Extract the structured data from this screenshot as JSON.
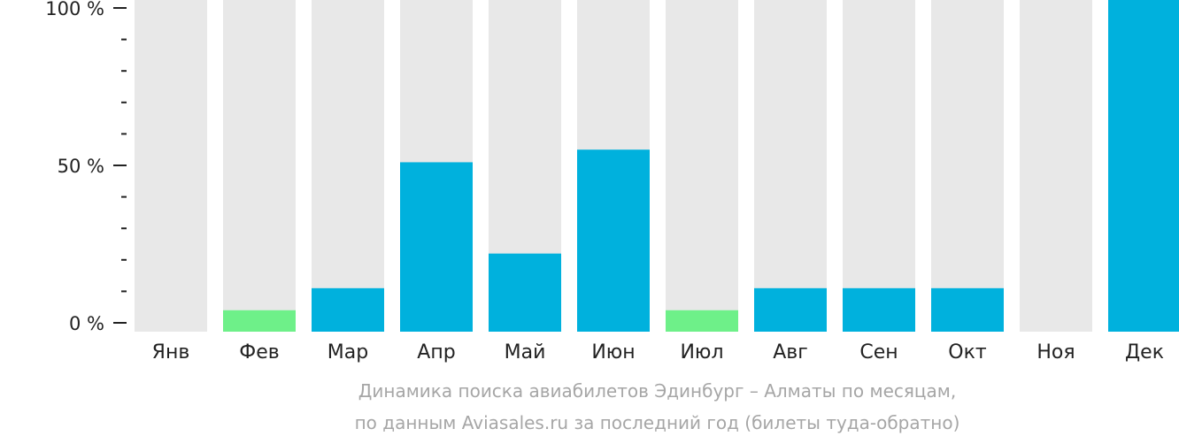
{
  "chart_data": {
    "type": "bar",
    "title_lines": [
      "Динамика поиска авиабилетов Эдинбург – Алматы по месяцам,",
      "по данным Aviasales.ru за последний год (билеты туда-обратно)"
    ],
    "categories": [
      "Янв",
      "Фев",
      "Мар",
      "Апр",
      "Май",
      "Июн",
      "Июл",
      "Авг",
      "Сен",
      "Окт",
      "Ноя",
      "Дек"
    ],
    "values": [
      0,
      4,
      11,
      51,
      22,
      55,
      4,
      11,
      11,
      11,
      0,
      100
    ],
    "value_colors": [
      "#00b1dd",
      "#6ef089",
      "#00b1dd",
      "#00b1dd",
      "#00b1dd",
      "#00b1dd",
      "#6ef089",
      "#00b1dd",
      "#00b1dd",
      "#00b1dd",
      "#00b1dd",
      "#00b1dd"
    ],
    "y_ticks": [
      {
        "value": 0,
        "label": "0 %"
      },
      {
        "value": 50,
        "label": "50 %"
      },
      {
        "value": 100,
        "label": "100 %"
      }
    ],
    "minor_tick_step": 10,
    "ylim": [
      0,
      100
    ],
    "background_bar_color": "#e8e8e8",
    "axis_color": "#222222",
    "grid": false,
    "legend": "none"
  }
}
